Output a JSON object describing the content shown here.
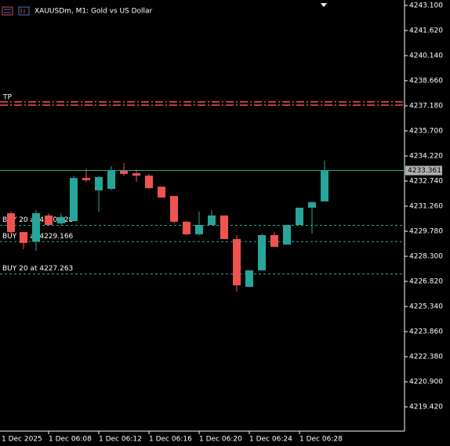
{
  "chart_data": {
    "type": "candlestick",
    "title": "XAUUSDm, M1:  Gold vs US Dollar",
    "date_label": "1 Dec 2025",
    "categories": [
      null,
      null,
      null,
      "1 Dec 06:08",
      null,
      null,
      null,
      "1 Dec 06:12",
      null,
      null,
      null,
      "1 Dec 06:16",
      null,
      null,
      null,
      "1 Dec 06:20",
      null,
      null,
      null,
      "1 Dec 06:24",
      null,
      null,
      null,
      "1 Dec 06:28",
      null,
      null
    ],
    "open": [
      4230.84,
      4229.73,
      4229.18,
      4230.71,
      4230.24,
      4230.38,
      4232.92,
      4232.19,
      4232.28,
      4233.39,
      4233.2,
      4233.06,
      4232.41,
      4231.86,
      4230.34,
      4229.6,
      4230.15,
      4230.71,
      4229.32,
      4226.5,
      4227.47,
      4229.55,
      4228.99,
      4230.15,
      4231.17,
      4231.54
    ],
    "high": [
      4230.94,
      4229.73,
      4231.03,
      4230.84,
      4230.84,
      4233.06,
      4233.48,
      4233.06,
      4233.62,
      4233.8,
      4233.43,
      4233.16,
      4232.41,
      4231.86,
      4230.38,
      4230.94,
      4231.03,
      4230.71,
      4229.55,
      4227.47,
      4229.64,
      4229.73,
      4230.15,
      4231.17,
      4231.54,
      4233.94
    ],
    "low": [
      4229.64,
      4228.72,
      4228.62,
      4230.1,
      4230.15,
      4230.34,
      4232.69,
      4230.94,
      4232.19,
      4233.06,
      4232.69,
      4232.28,
      4231.77,
      4230.24,
      4229.55,
      4229.55,
      4230.15,
      4229.32,
      4226.22,
      4226.5,
      4227.47,
      4228.86,
      4228.99,
      4230.15,
      4229.64,
      4231.54
    ],
    "close": [
      4229.73,
      4229.09,
      4230.84,
      4230.15,
      4230.61,
      4232.92,
      4232.79,
      4232.97,
      4233.34,
      4233.16,
      4233.06,
      4232.32,
      4231.77,
      4230.34,
      4229.6,
      4230.15,
      4230.71,
      4229.32,
      4226.59,
      4227.47,
      4229.55,
      4228.86,
      4230.15,
      4231.17,
      4231.49,
      4233.36
    ],
    "up_color": "#26a69a",
    "down_color": "#ef5350",
    "ylim": [
      4217.99,
      4243.42
    ],
    "yticks": [
      {
        "value": 4243.1,
        "label": "4243.100"
      },
      {
        "value": 4241.62,
        "label": "4241.620"
      },
      {
        "value": 4240.14,
        "label": "4240.140"
      },
      {
        "value": 4238.66,
        "label": "4238.660"
      },
      {
        "value": 4237.18,
        "label": "4237.180"
      },
      {
        "value": 4235.7,
        "label": "4235.700"
      },
      {
        "value": 4234.22,
        "label": "4234.220"
      },
      {
        "value": 4232.74,
        "label": "4232.740"
      },
      {
        "value": 4231.26,
        "label": "4231.260"
      },
      {
        "value": 4229.78,
        "label": "4229.780"
      },
      {
        "value": 4228.3,
        "label": "4228.300"
      },
      {
        "value": 4226.82,
        "label": "4226.820"
      },
      {
        "value": 4225.34,
        "label": "4225.340"
      },
      {
        "value": 4223.86,
        "label": "4223.860"
      },
      {
        "value": 4222.38,
        "label": "4222.380"
      },
      {
        "value": 4220.9,
        "label": "4220.900"
      },
      {
        "value": 4219.42,
        "label": "4219.420"
      }
    ],
    "last_price": {
      "value": 4233.361,
      "label": "4233.361"
    },
    "order_lines": [
      {
        "label": "BUY 20 at 4230.128",
        "price": 4230.128
      },
      {
        "label": "BUY 20 at 4229.166",
        "price": 4229.166
      },
      {
        "label": "BUY 20 at 4227.263",
        "price": 4227.263
      }
    ],
    "tp_label": "TP",
    "tp_lines": [
      4237.41,
      4237.22
    ]
  }
}
